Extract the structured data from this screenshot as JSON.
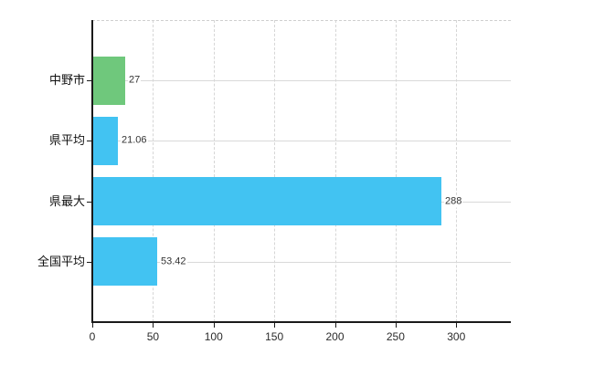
{
  "chart_data": {
    "type": "bar",
    "orientation": "horizontal",
    "title": "",
    "xlabel": "",
    "ylabel": "",
    "categories": [
      "中野市",
      "県平均",
      "県最大",
      "全国平均"
    ],
    "values": [
      27,
      21.06,
      288,
      53.42
    ],
    "value_labels": [
      "27",
      "21.06",
      "288",
      "53.42"
    ],
    "bar_colors": [
      "#6fc87c",
      "#42c3f2",
      "#42c3f2",
      "#42c3f2"
    ],
    "x_ticks": [
      0,
      50,
      100,
      150,
      200,
      250,
      300
    ],
    "x_tick_labels": [
      "0",
      "50",
      "100",
      "150",
      "200",
      "250",
      "300"
    ],
    "xlim": [
      0,
      345
    ],
    "grid": "on",
    "legend": "none",
    "colors": {
      "highlight_bar": "#6fc87c",
      "default_bar": "#42c3f2",
      "axis": "#1a1a1a",
      "gridline": "#d9d9d9",
      "background": "#ffffff"
    }
  }
}
